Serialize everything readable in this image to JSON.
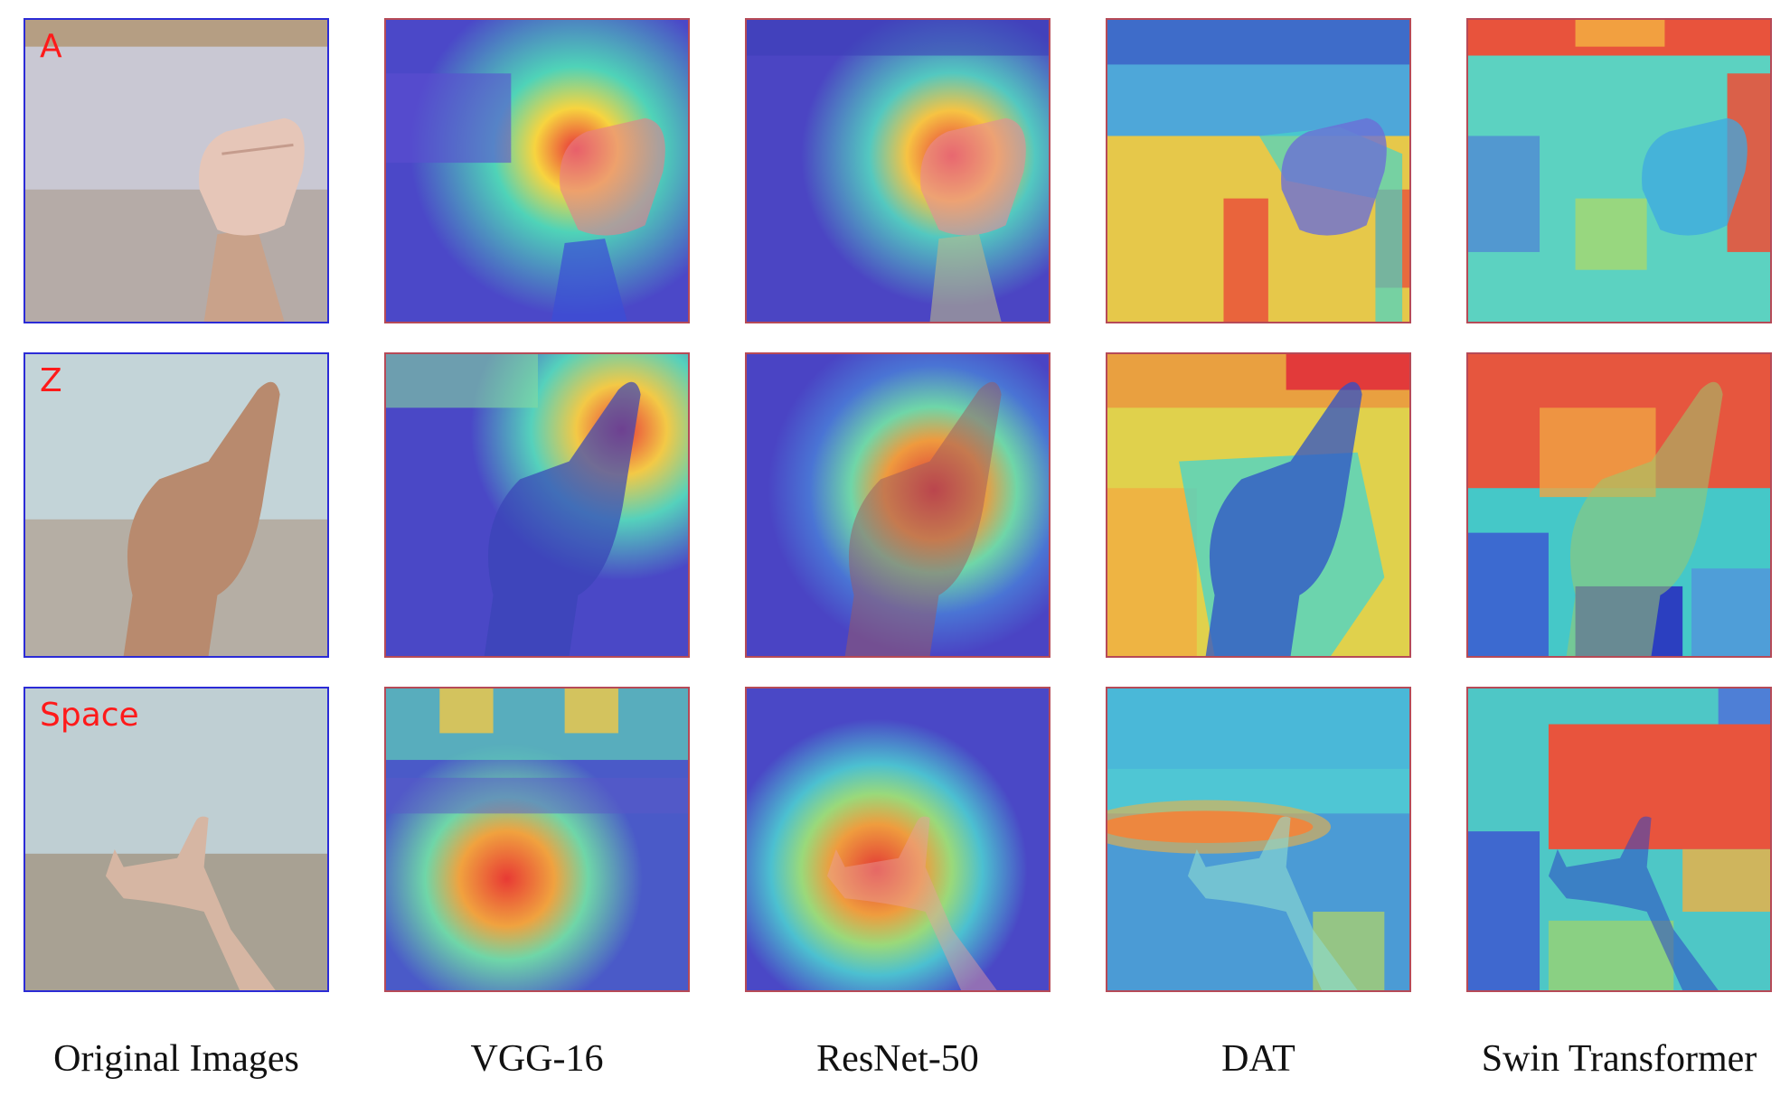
{
  "rows": [
    {
      "label": "A"
    },
    {
      "label": "Z"
    },
    {
      "label": "Space"
    }
  ],
  "columns": [
    {
      "label": "Original Images"
    },
    {
      "label": "VGG-16"
    },
    {
      "label": "ResNet-50"
    },
    {
      "label": "DAT"
    },
    {
      "label": "Swin Transformer"
    }
  ],
  "colors": {
    "frame_original": "#2b2bd6",
    "frame_heatmap": "#b64a57",
    "row_label": "#ff1a1a"
  }
}
